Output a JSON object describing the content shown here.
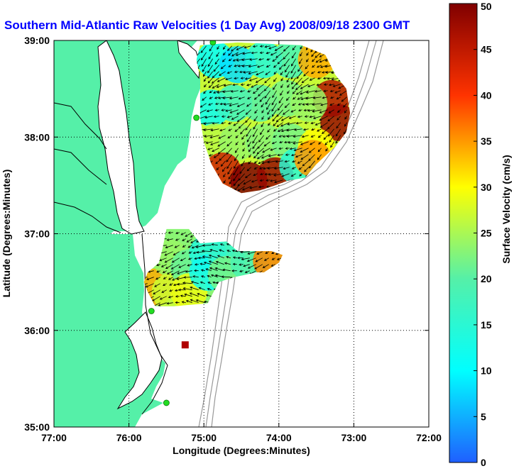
{
  "title": "Southern Mid-Atlantic Raw Velocities (1 Day Avg) 2008/09/18 2300 GMT",
  "axes": {
    "xlabel": "Longitude (Degrees:Minutes)",
    "ylabel": "Latitude (Degrees:Minutes)",
    "x_ticks": [
      "77:00",
      "76:00",
      "75:00",
      "74:00",
      "73:00",
      "72:00"
    ],
    "y_ticks": [
      "39:00",
      "38:00",
      "37:00",
      "36:00",
      "35:00"
    ]
  },
  "colorbar": {
    "label": "Surface Velocity (cm/s)",
    "ticks": [
      "0",
      "5",
      "10",
      "15",
      "20",
      "25",
      "30",
      "35",
      "40",
      "45",
      "50"
    ],
    "range": [
      0,
      50
    ]
  },
  "colors": {
    "land": "#55f0a8",
    "water": "#ffffff",
    "coast": "#000000",
    "bathymetry": "#999999",
    "title": "#0000ff",
    "station": "#22dd22",
    "marker": "#b00000"
  },
  "chart_data": {
    "type": "map",
    "lon_range": [
      -77.0,
      -72.0
    ],
    "lat_range": [
      35.0,
      39.0
    ],
    "grid": true,
    "stations": [
      {
        "lon": -74.88,
        "lat": 38.98
      },
      {
        "lon": -75.1,
        "lat": 38.2
      },
      {
        "lon": -75.7,
        "lat": 36.2
      },
      {
        "lon": -75.5,
        "lat": 35.25
      }
    ],
    "marker": {
      "lon": -75.25,
      "lat": 35.85
    },
    "regions": [
      {
        "name": "northern-region",
        "polygon": [
          [
            -75.05,
            38.95
          ],
          [
            -74.55,
            38.98
          ],
          [
            -73.7,
            38.95
          ],
          [
            -73.38,
            38.85
          ],
          [
            -73.25,
            38.65
          ],
          [
            -73.1,
            38.5
          ],
          [
            -73.05,
            38.25
          ],
          [
            -73.1,
            38.05
          ],
          [
            -73.25,
            37.9
          ],
          [
            -73.5,
            37.72
          ],
          [
            -73.65,
            37.58
          ],
          [
            -73.88,
            37.55
          ],
          [
            -74.05,
            37.5
          ],
          [
            -74.25,
            37.45
          ],
          [
            -74.5,
            37.42
          ],
          [
            -74.75,
            37.52
          ],
          [
            -74.9,
            37.72
          ],
          [
            -75.0,
            37.95
          ],
          [
            -75.05,
            38.2
          ],
          [
            -75.05,
            38.6
          ],
          [
            -75.1,
            38.8
          ]
        ],
        "cells": [
          {
            "lon": -74.85,
            "lat": 38.8,
            "speed": 10
          },
          {
            "lon": -74.55,
            "lat": 38.75,
            "speed": 8
          },
          {
            "lon": -74.2,
            "lat": 38.8,
            "speed": 14
          },
          {
            "lon": -73.85,
            "lat": 38.8,
            "speed": 18
          },
          {
            "lon": -73.5,
            "lat": 38.8,
            "speed": 34
          },
          {
            "lon": -73.3,
            "lat": 38.4,
            "speed": 46
          },
          {
            "lon": -73.2,
            "lat": 38.15,
            "speed": 48
          },
          {
            "lon": -74.9,
            "lat": 38.3,
            "speed": 11
          },
          {
            "lon": -74.6,
            "lat": 38.35,
            "speed": 17
          },
          {
            "lon": -74.25,
            "lat": 38.35,
            "speed": 20
          },
          {
            "lon": -73.9,
            "lat": 38.4,
            "speed": 22
          },
          {
            "lon": -73.6,
            "lat": 38.35,
            "speed": 24
          },
          {
            "lon": -74.85,
            "lat": 37.95,
            "speed": 26
          },
          {
            "lon": -74.55,
            "lat": 37.95,
            "speed": 24
          },
          {
            "lon": -74.2,
            "lat": 37.95,
            "speed": 23
          },
          {
            "lon": -73.85,
            "lat": 37.95,
            "speed": 22
          },
          {
            "lon": -73.5,
            "lat": 37.9,
            "speed": 30
          },
          {
            "lon": -74.75,
            "lat": 37.65,
            "speed": 44
          },
          {
            "lon": -74.4,
            "lat": 37.55,
            "speed": 50
          },
          {
            "lon": -74.05,
            "lat": 37.6,
            "speed": 48
          },
          {
            "lon": -73.75,
            "lat": 37.7,
            "speed": 15
          },
          {
            "lon": -73.55,
            "lat": 37.78,
            "speed": 35
          }
        ],
        "flow": "southwest"
      },
      {
        "name": "southern-region",
        "polygon": [
          [
            -75.5,
            37.05
          ],
          [
            -75.2,
            37.05
          ],
          [
            -75.05,
            36.9
          ],
          [
            -74.7,
            36.92
          ],
          [
            -74.55,
            36.82
          ],
          [
            -74.1,
            36.82
          ],
          [
            -73.95,
            36.78
          ],
          [
            -74.0,
            36.7
          ],
          [
            -74.2,
            36.6
          ],
          [
            -74.3,
            36.6
          ],
          [
            -74.6,
            36.55
          ],
          [
            -74.8,
            36.5
          ],
          [
            -74.95,
            36.28
          ],
          [
            -75.4,
            36.25
          ],
          [
            -75.65,
            36.25
          ],
          [
            -75.75,
            36.4
          ],
          [
            -75.8,
            36.5
          ],
          [
            -75.75,
            36.6
          ],
          [
            -75.6,
            36.7
          ],
          [
            -75.55,
            36.85
          ]
        ],
        "cells": [
          {
            "lon": -75.65,
            "lat": 36.45,
            "speed": 34
          },
          {
            "lon": -75.45,
            "lat": 36.75,
            "speed": 24
          },
          {
            "lon": -75.45,
            "lat": 36.4,
            "speed": 27
          },
          {
            "lon": -75.2,
            "lat": 36.65,
            "speed": 21
          },
          {
            "lon": -75.2,
            "lat": 36.4,
            "speed": 29
          },
          {
            "lon": -74.95,
            "lat": 36.8,
            "speed": 14
          },
          {
            "lon": -74.95,
            "lat": 36.6,
            "speed": 12
          },
          {
            "lon": -74.7,
            "lat": 36.75,
            "speed": 16
          },
          {
            "lon": -74.7,
            "lat": 36.58,
            "speed": 22
          },
          {
            "lon": -74.4,
            "lat": 36.7,
            "speed": 19
          },
          {
            "lon": -74.1,
            "lat": 36.72,
            "speed": 36
          }
        ],
        "flow": "west"
      }
    ]
  }
}
